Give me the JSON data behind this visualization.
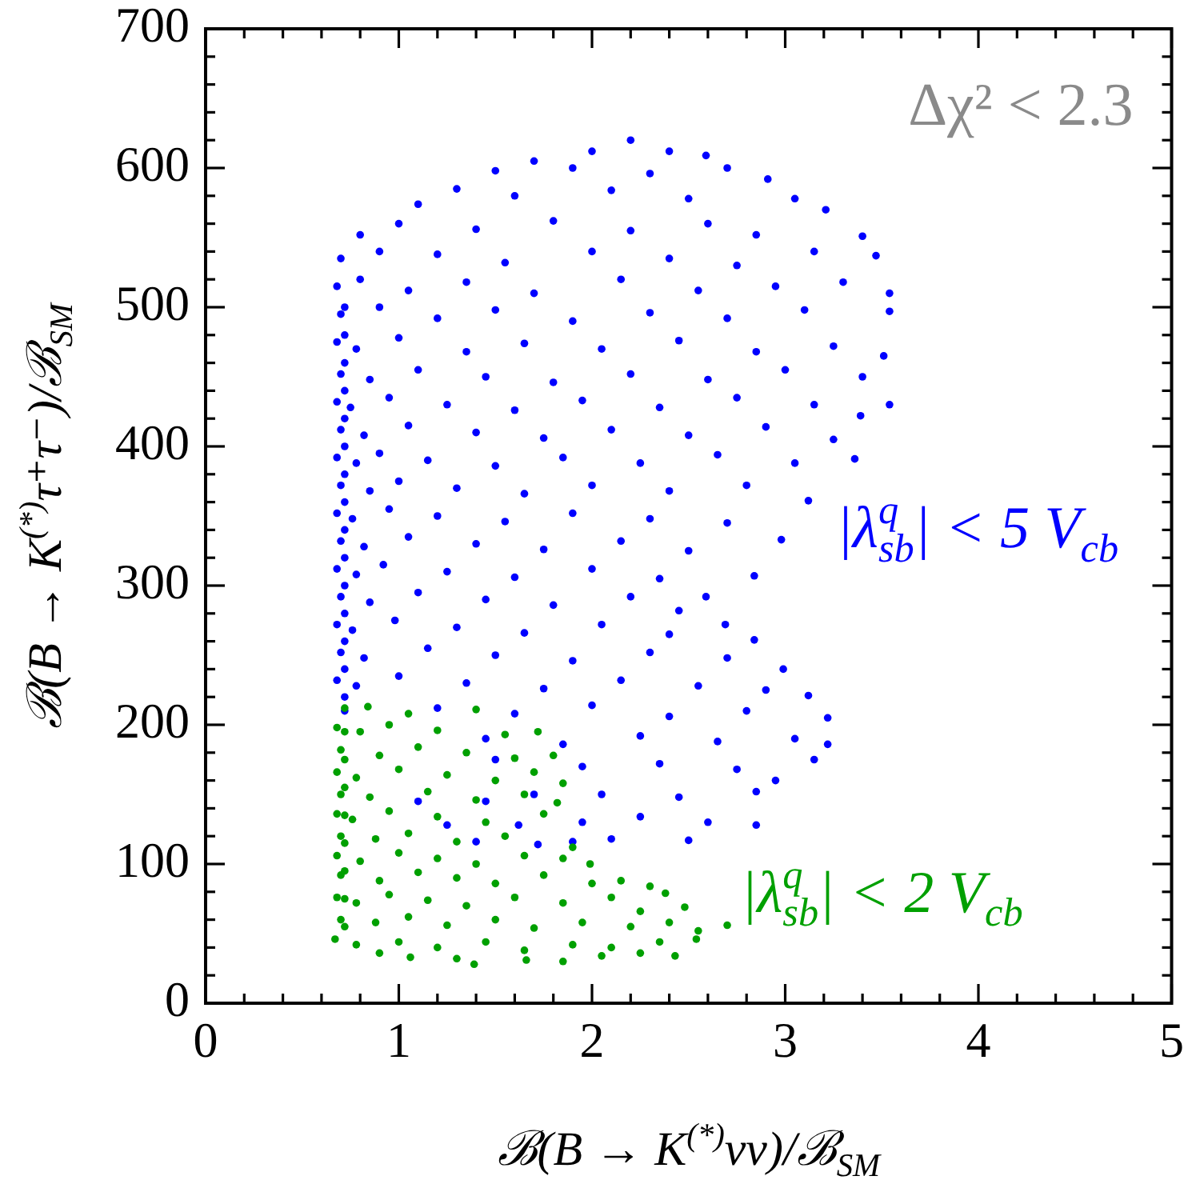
{
  "chart_data": {
    "type": "scatter",
    "xlabel": "ℬ(B → K$^{(*)}$νν)/ℬ$_{SM}$",
    "ylabel": "ℬ(B → K$^{(*)}$τ⁺τ⁻)/ℬ$_{SM}$",
    "annotations": [
      "Δχ² < 2.3"
    ],
    "xlim": [
      0,
      5
    ],
    "ylim": [
      0,
      700
    ],
    "xticks": [
      0,
      {
        "value": 0.2,
        "label": null
      },
      {
        "value": 0.4,
        "label": null
      },
      {
        "value": 0.6,
        "label": null
      },
      {
        "value": 0.8,
        "label": null
      },
      1,
      {
        "value": 1.2,
        "label": null
      },
      {
        "value": 1.4,
        "label": null
      },
      {
        "value": 1.6,
        "label": null
      },
      {
        "value": 1.8,
        "label": null
      },
      2,
      {
        "value": 2.2,
        "label": null
      },
      {
        "value": 2.4,
        "label": null
      },
      {
        "value": 2.6,
        "label": null
      },
      {
        "value": 2.8,
        "label": null
      },
      3,
      {
        "value": 3.2,
        "label": null
      },
      {
        "value": 3.4,
        "label": null
      },
      {
        "value": 3.6,
        "label": null
      },
      {
        "value": 3.8,
        "label": null
      },
      4,
      {
        "value": 4.2,
        "label": null
      },
      {
        "value": 4.4,
        "label": null
      },
      {
        "value": 4.6,
        "label": null
      },
      {
        "value": 4.8,
        "label": null
      },
      5
    ],
    "yticks": [
      0,
      {
        "value": 20,
        "label": null
      },
      {
        "value": 40,
        "label": null
      },
      {
        "value": 60,
        "label": null
      },
      {
        "value": 80,
        "label": null
      },
      100,
      {
        "value": 120,
        "label": null
      },
      {
        "value": 140,
        "label": null
      },
      {
        "value": 160,
        "label": null
      },
      {
        "value": 180,
        "label": null
      },
      200,
      {
        "value": 220,
        "label": null
      },
      {
        "value": 240,
        "label": null
      },
      {
        "value": 260,
        "label": null
      },
      {
        "value": 280,
        "label": null
      },
      300,
      {
        "value": 320,
        "label": null
      },
      {
        "value": 340,
        "label": null
      },
      {
        "value": 360,
        "label": null
      },
      {
        "value": 380,
        "label": null
      },
      400,
      {
        "value": 420,
        "label": null
      },
      {
        "value": 440,
        "label": null
      },
      {
        "value": 460,
        "label": null
      },
      {
        "value": 480,
        "label": null
      },
      500,
      {
        "value": 520,
        "label": null
      },
      {
        "value": 540,
        "label": null
      },
      {
        "value": 560,
        "label": null
      },
      {
        "value": 580,
        "label": null
      },
      600,
      {
        "value": 620,
        "label": null
      },
      {
        "value": 640,
        "label": null
      },
      {
        "value": 660,
        "label": null
      },
      {
        "value": 680,
        "label": null
      },
      700
    ],
    "grid": false,
    "legend": false,
    "marker": "circle",
    "series": [
      {
        "name": "|λ$_{sb}$$^{q}$| < 5 V$_{cb}$",
        "color": "#0000ff",
        "x": [
          2.0,
          2.2,
          2.4,
          2.59,
          1.5,
          1.7,
          1.9,
          2.3,
          2.7,
          2.91,
          1.1,
          1.3,
          1.6,
          2.1,
          2.5,
          3.05,
          3.21,
          0.8,
          1.0,
          1.4,
          1.8,
          2.2,
          2.6,
          2.85,
          3.4,
          0.7,
          0.9,
          1.2,
          1.55,
          2.0,
          2.4,
          2.75,
          3.15,
          3.47,
          0.68,
          0.8,
          1.05,
          1.35,
          1.7,
          2.15,
          2.55,
          2.95,
          3.3,
          3.54,
          0.7,
          0.9,
          1.2,
          1.5,
          1.9,
          2.3,
          2.7,
          3.1,
          3.54,
          0.68,
          0.78,
          1.0,
          1.35,
          1.65,
          2.05,
          2.45,
          2.85,
          3.25,
          3.51,
          0.7,
          0.85,
          1.1,
          1.45,
          1.8,
          2.2,
          2.6,
          3.0,
          3.4,
          0.68,
          0.75,
          0.95,
          1.25,
          1.6,
          1.95,
          2.35,
          2.75,
          3.15,
          3.54,
          0.7,
          0.82,
          1.05,
          1.4,
          1.75,
          2.1,
          2.5,
          2.9,
          3.25,
          3.39,
          0.68,
          0.78,
          0.9,
          1.15,
          1.5,
          1.85,
          2.25,
          2.65,
          3.05,
          3.36,
          0.7,
          0.85,
          1.0,
          1.3,
          1.65,
          2.0,
          2.4,
          2.8,
          3.12,
          0.68,
          0.76,
          0.95,
          1.2,
          1.55,
          1.9,
          2.3,
          2.7,
          2.98,
          0.7,
          0.82,
          1.05,
          1.4,
          1.75,
          2.15,
          2.5,
          2.84,
          0.68,
          0.78,
          0.92,
          1.25,
          1.6,
          2.0,
          2.35,
          2.59,
          0.7,
          0.85,
          1.1,
          1.45,
          1.8,
          2.2,
          2.45,
          2.69,
          0.68,
          0.76,
          0.98,
          1.3,
          1.65,
          2.05,
          2.4,
          2.84,
          0.7,
          0.82,
          1.15,
          1.5,
          1.9,
          2.3,
          2.7,
          2.99,
          0.68,
          0.78,
          1.0,
          1.35,
          1.75,
          2.15,
          2.55,
          2.9,
          3.12,
          0.72,
          1.2,
          1.6,
          2.0,
          2.4,
          2.8,
          3.22,
          1.45,
          1.85,
          2.25,
          2.65,
          3.05,
          3.22,
          1.95,
          2.35,
          2.75,
          3.15,
          2.05,
          2.45,
          2.85,
          2.95,
          1.95,
          2.25,
          2.6,
          2.85,
          2.1,
          2.5,
          1.9,
          1.5,
          1.7,
          1.45,
          1.62,
          1.4,
          1.72,
          1.25,
          1.1,
          0.72,
          0.72,
          0.72,
          0.72,
          0.72,
          0.72,
          0.72,
          0.72,
          0.72,
          0.72,
          0.72,
          0.72,
          0.72,
          0.72,
          0.72
        ],
        "values": [
          612,
          620,
          612,
          609,
          598,
          605,
          600,
          596,
          600,
          592,
          574,
          585,
          580,
          584,
          578,
          578,
          570,
          552,
          560,
          556,
          562,
          555,
          560,
          552,
          551,
          535,
          540,
          538,
          532,
          540,
          535,
          530,
          540,
          537,
          515,
          520,
          512,
          518,
          510,
          520,
          512,
          515,
          518,
          510,
          495,
          500,
          492,
          498,
          490,
          496,
          492,
          498,
          497,
          475,
          470,
          478,
          468,
          474,
          470,
          476,
          468,
          472,
          465,
          452,
          448,
          455,
          450,
          446,
          452,
          448,
          455,
          450,
          432,
          428,
          435,
          430,
          426,
          433,
          428,
          435,
          430,
          430,
          412,
          408,
          415,
          410,
          406,
          412,
          408,
          414,
          405,
          422,
          392,
          388,
          395,
          390,
          386,
          392,
          388,
          394,
          388,
          391,
          372,
          368,
          375,
          370,
          366,
          372,
          368,
          372,
          361,
          352,
          348,
          355,
          350,
          346,
          352,
          348,
          345,
          333,
          332,
          328,
          335,
          330,
          326,
          332,
          325,
          307,
          312,
          308,
          315,
          310,
          306,
          312,
          305,
          292,
          292,
          288,
          295,
          290,
          286,
          292,
          282,
          272,
          272,
          268,
          275,
          270,
          266,
          272,
          265,
          261,
          252,
          248,
          255,
          250,
          246,
          252,
          248,
          240,
          232,
          228,
          235,
          230,
          226,
          232,
          228,
          225,
          221,
          210,
          212,
          208,
          214,
          206,
          210,
          205,
          190,
          186,
          192,
          188,
          190,
          186,
          170,
          172,
          168,
          175,
          150,
          148,
          152,
          160,
          130,
          134,
          130,
          128,
          118,
          117,
          116,
          175,
          150,
          145,
          128,
          116,
          114,
          128,
          145,
          220,
          240,
          260,
          280,
          300,
          320,
          340,
          360,
          380,
          400,
          420,
          440,
          460,
          480,
          500
        ]
      },
      {
        "name": "|λ$_{sb}$$^{q}$| < 2 V$_{cb}$",
        "color": "#00a000",
        "x": [
          0.72,
          0.84,
          1.05,
          1.4,
          0.68,
          0.8,
          0.95,
          1.2,
          1.55,
          1.72,
          0.7,
          0.9,
          1.1,
          1.35,
          1.6,
          1.8,
          0.68,
          0.78,
          1.0,
          1.25,
          1.5,
          1.7,
          1.85,
          0.7,
          0.85,
          1.15,
          1.4,
          1.65,
          1.82,
          0.68,
          0.76,
          0.95,
          1.2,
          1.45,
          1.75,
          0.7,
          0.88,
          1.05,
          1.3,
          1.55,
          1.9,
          0.68,
          0.8,
          1.0,
          1.2,
          1.4,
          1.65,
          1.85,
          1.99,
          0.7,
          0.9,
          1.1,
          1.3,
          1.5,
          1.75,
          2.0,
          2.15,
          2.3,
          0.68,
          0.78,
          0.95,
          1.15,
          1.35,
          1.6,
          1.85,
          2.1,
          2.25,
          2.38,
          2.48,
          0.7,
          0.88,
          1.05,
          1.25,
          1.5,
          1.7,
          1.95,
          2.2,
          2.4,
          2.55,
          2.7,
          0.67,
          0.78,
          1.0,
          1.2,
          1.45,
          1.65,
          1.9,
          2.1,
          2.35,
          2.54,
          0.9,
          1.06,
          1.3,
          1.39,
          1.66,
          1.85,
          2.05,
          2.25,
          2.43,
          0.72,
          0.72,
          0.72,
          0.72,
          0.72,
          0.72,
          0.72,
          0.72
        ],
        "values": [
          212,
          213,
          208,
          211,
          198,
          195,
          200,
          196,
          193,
          195,
          182,
          178,
          184,
          180,
          176,
          178,
          166,
          162,
          168,
          164,
          160,
          166,
          158,
          150,
          148,
          152,
          146,
          150,
          144,
          136,
          132,
          138,
          134,
          130,
          136,
          120,
          118,
          122,
          116,
          120,
          112,
          106,
          102,
          108,
          104,
          100,
          106,
          104,
          100,
          92,
          88,
          94,
          90,
          86,
          92,
          86,
          88,
          84,
          76,
          72,
          78,
          74,
          70,
          76,
          72,
          76,
          66,
          79,
          69,
          60,
          58,
          62,
          56,
          60,
          54,
          58,
          55,
          58,
          52,
          56,
          46,
          42,
          44,
          40,
          44,
          38,
          42,
          40,
          44,
          46,
          36,
          33,
          32,
          28,
          31,
          30,
          34,
          36,
          34,
          55,
          75,
          95,
          115,
          135,
          155,
          175,
          195
        ]
      }
    ]
  }
}
